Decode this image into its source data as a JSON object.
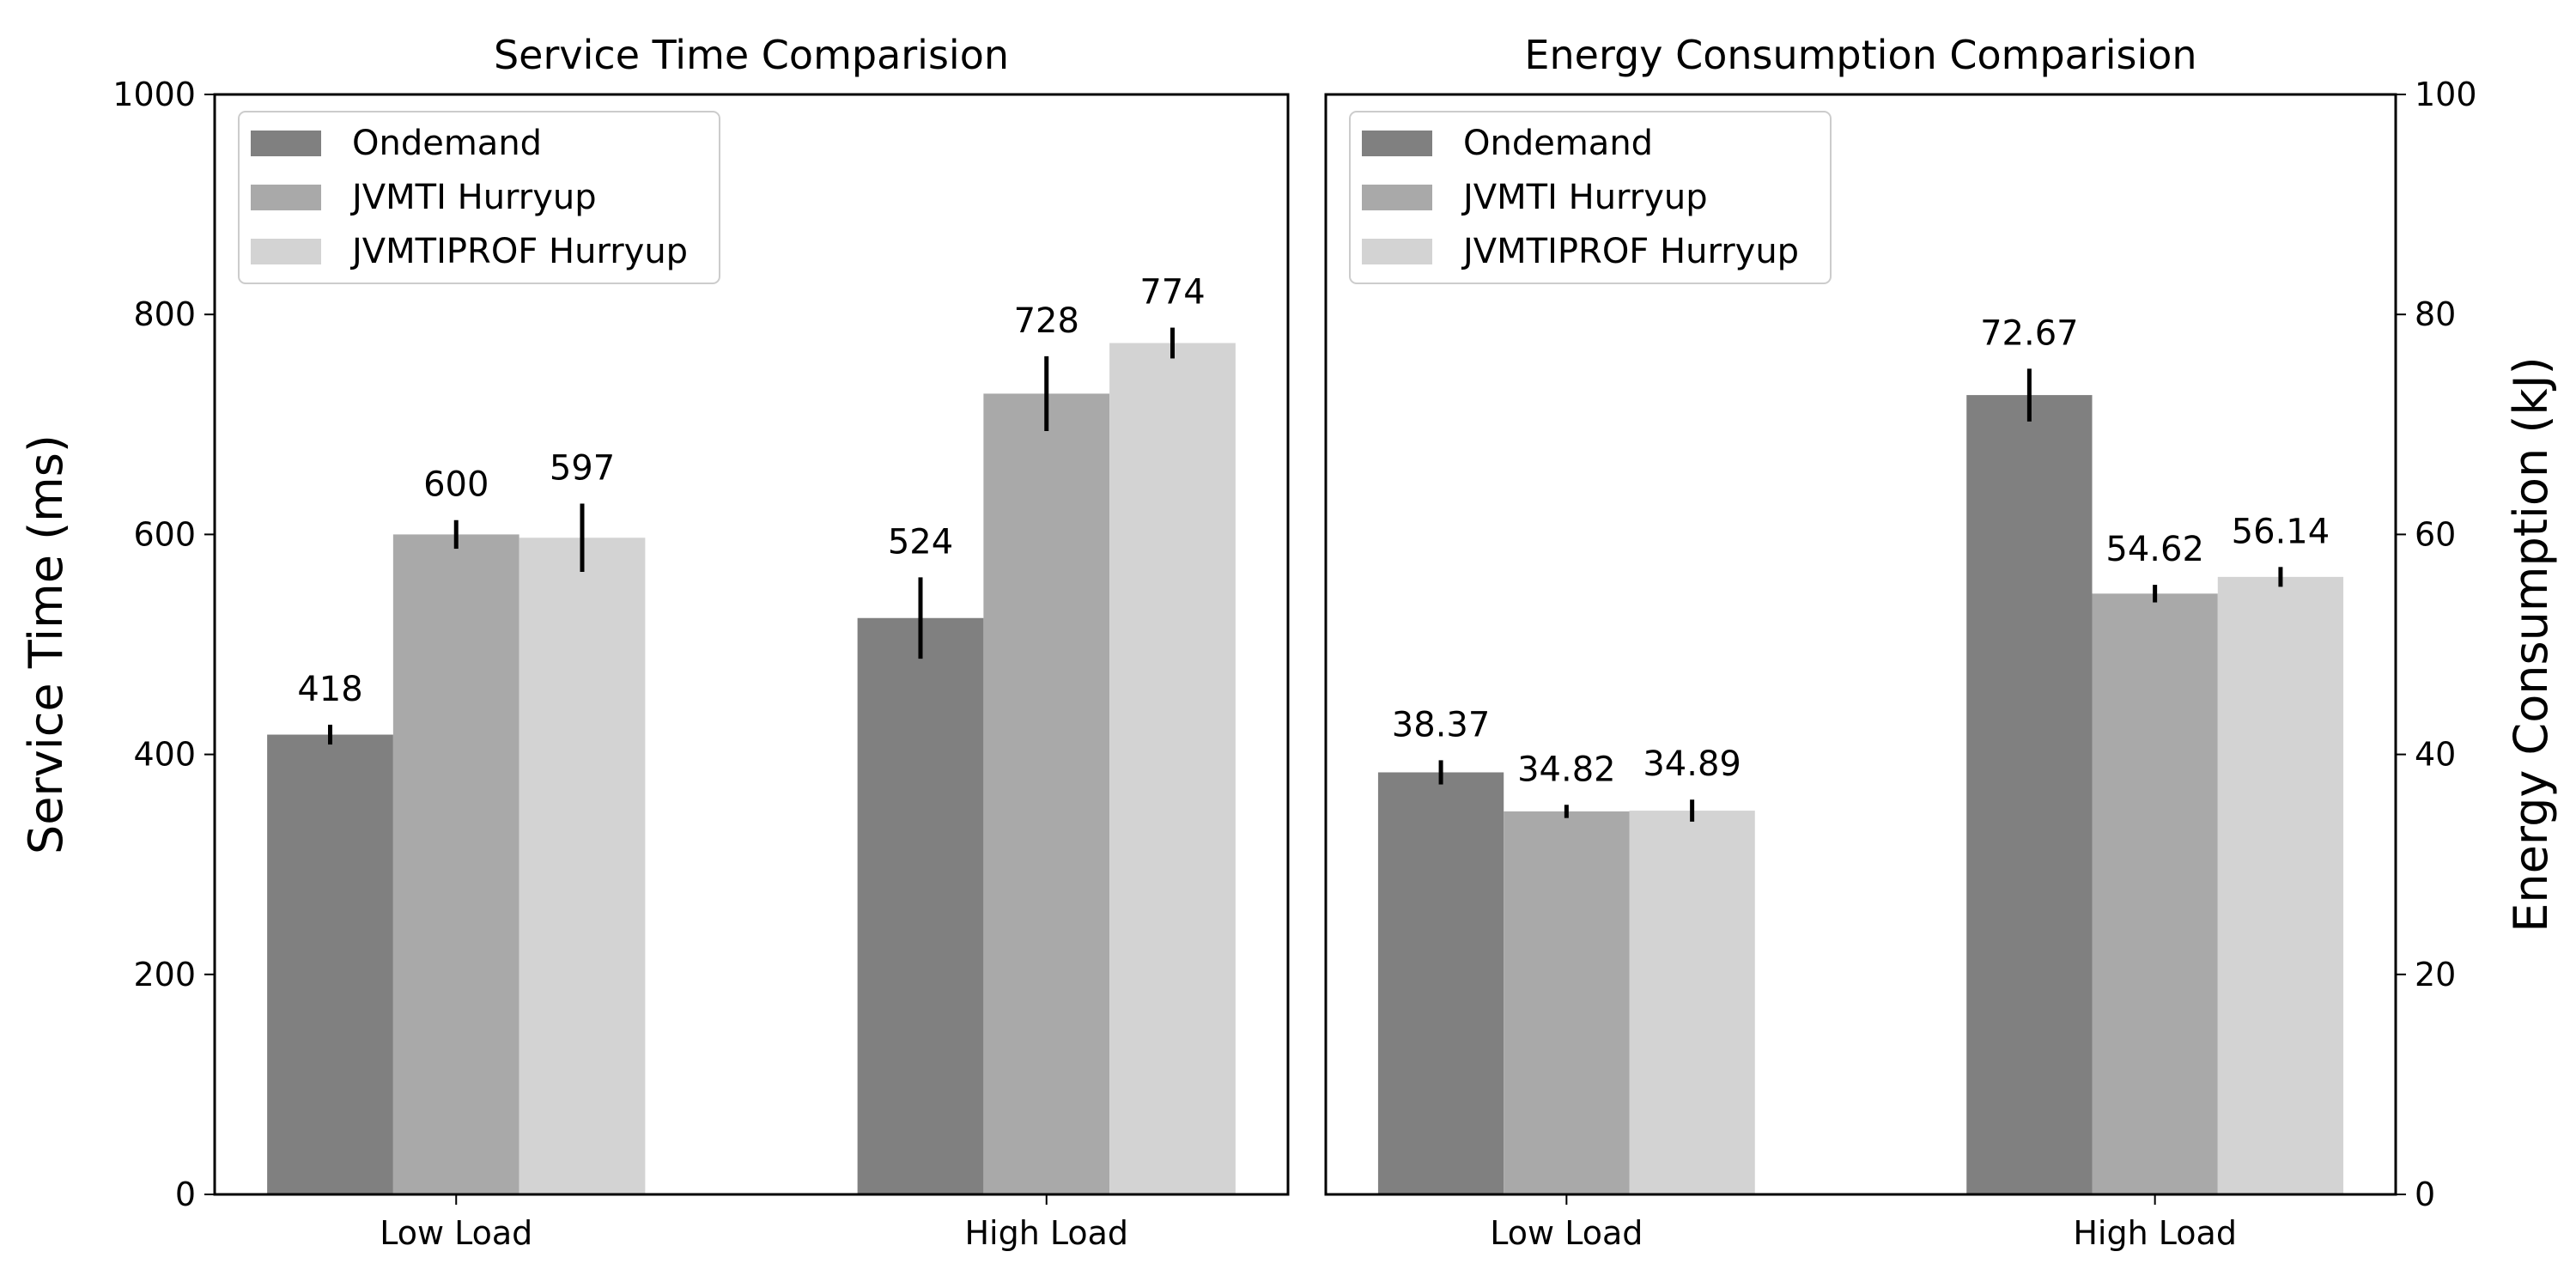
{
  "chart_data": [
    {
      "type": "bar",
      "title": "Service Time Comparision",
      "xlabel": "",
      "ylabel": "Service Time (ms)",
      "ylim": [
        0,
        1000
      ],
      "yticks": [
        0,
        200,
        400,
        600,
        800,
        1000
      ],
      "y_axis_side": "left",
      "grid": false,
      "legend": "top-left",
      "categories": [
        "Low Load",
        "High Load"
      ],
      "series": [
        {
          "name": "Ondemand",
          "color": "#808080",
          "values": [
            418,
            524
          ],
          "errors": [
            9,
            37
          ],
          "labels": [
            "418",
            "524"
          ]
        },
        {
          "name": "JVMTI Hurryup",
          "color": "#a9a9a9",
          "values": [
            600,
            728
          ],
          "errors": [
            13,
            34
          ],
          "labels": [
            "600",
            "728"
          ]
        },
        {
          "name": "JVMTIPROF Hurryup",
          "color": "#d3d3d3",
          "values": [
            597,
            774
          ],
          "errors": [
            31,
            14
          ],
          "labels": [
            "597",
            "774"
          ]
        }
      ]
    },
    {
      "type": "bar",
      "title": "Energy Consumption Comparision",
      "xlabel": "",
      "ylabel": "Energy Consumption (kJ)",
      "ylim": [
        0,
        100
      ],
      "yticks": [
        0,
        20,
        40,
        60,
        80,
        100
      ],
      "y_axis_side": "right",
      "grid": false,
      "legend": "top-left",
      "categories": [
        "Low Load",
        "High Load"
      ],
      "series": [
        {
          "name": "Ondemand",
          "color": "#808080",
          "values": [
            38.37,
            72.67
          ],
          "errors": [
            1.1,
            2.4
          ],
          "labels": [
            "38.37",
            "72.67"
          ]
        },
        {
          "name": "JVMTI Hurryup",
          "color": "#a9a9a9",
          "values": [
            34.82,
            54.62
          ],
          "errors": [
            0.6,
            0.8
          ],
          "labels": [
            "34.82",
            "54.62"
          ]
        },
        {
          "name": "JVMTIPROF Hurryup",
          "color": "#d3d3d3",
          "values": [
            34.89,
            56.14
          ],
          "errors": [
            1.0,
            0.9
          ],
          "labels": [
            "34.89",
            "56.14"
          ]
        }
      ]
    }
  ]
}
